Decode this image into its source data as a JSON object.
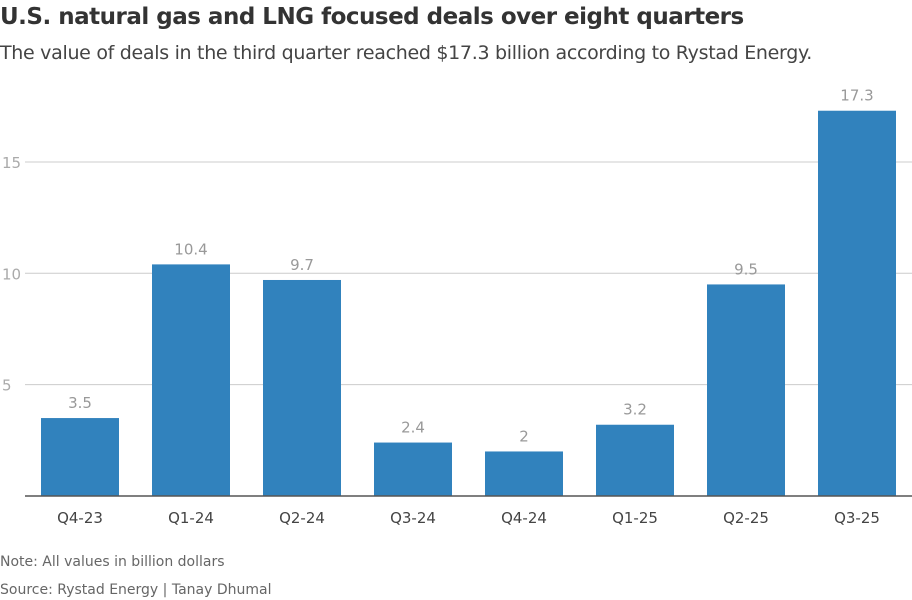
{
  "title": "U.S. natural gas and LNG focused deals over eight quarters",
  "subtitle": "The value of deals in the third quarter reached $17.3 billion according to Rystad Energy.",
  "note": "Note: All values in billion dollars",
  "source": "Source: Rystad Energy | Tanay Dhumal",
  "chart_data": {
    "type": "bar",
    "title": "U.S. natural gas and LNG focused deals over eight quarters",
    "xlabel": "",
    "ylabel": "",
    "categories": [
      "Q4-23",
      "Q1-24",
      "Q2-24",
      "Q3-24",
      "Q4-24",
      "Q1-25",
      "Q2-25",
      "Q3-25"
    ],
    "values": [
      3.5,
      10.4,
      9.7,
      2.4,
      2,
      3.2,
      9.5,
      17.3
    ],
    "value_labels": [
      "3.5",
      "10.4",
      "9.7",
      "2.4",
      "2",
      "3.2",
      "9.5",
      "17.3"
    ],
    "yticks": [
      5,
      10,
      15
    ],
    "ylim": [
      0,
      17.3
    ],
    "grid": true,
    "bar_color": "#3182bd"
  }
}
